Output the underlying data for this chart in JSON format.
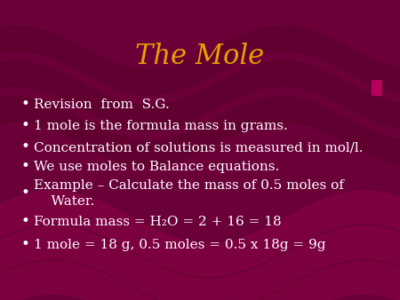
{
  "title": "The Mole",
  "title_color": "#E8A000",
  "title_fontsize": 22,
  "bg_color": "#6B0038",
  "text_color": "#FFFFFF",
  "bullet_fontsize": 11,
  "bullets": [
    "Revision  from  S.G.",
    "1 mole is the formula mass in grams.",
    "Concentration of solutions is measured in mol/l.",
    "We use moles to Balance equations.",
    "Example – Calculate the mass of 0.5 moles of\n    Water.",
    "Formula mass = H₂O = 2 + 16 = 18",
    "1 mole = 18 g, 0.5 moles = 0.5 x 18g = 9g"
  ],
  "wave_color": "#7A0040",
  "wave_color2": "#550030",
  "figwidth": 4.5,
  "figheight": 3.38,
  "dpi": 100
}
